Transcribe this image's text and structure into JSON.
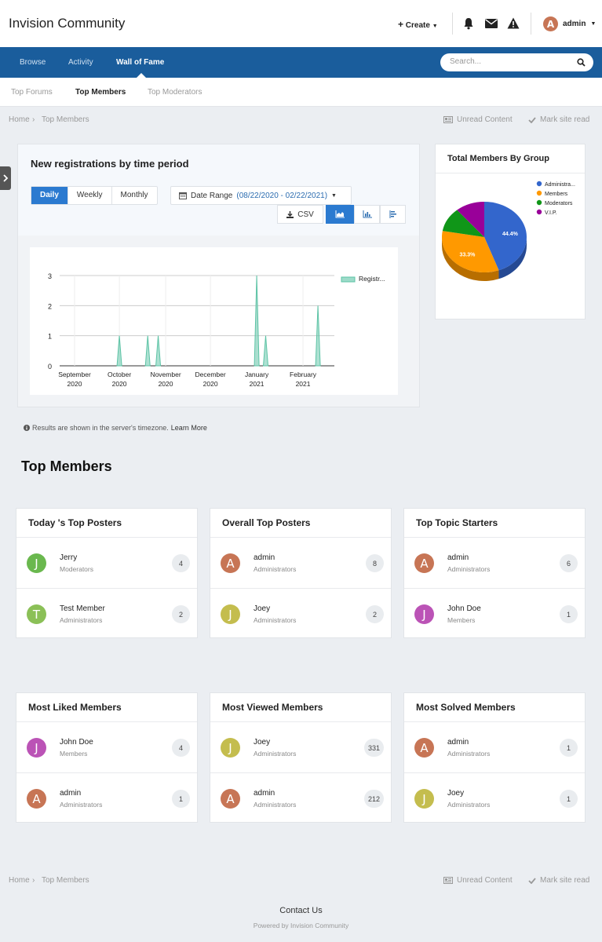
{
  "header": {
    "site_title": "Invision Community",
    "create_label": "Create",
    "user": {
      "name": "admin",
      "initial": "A",
      "color": "#c77555"
    }
  },
  "nav": {
    "items": [
      "Browse",
      "Activity",
      "Wall of Fame"
    ],
    "active": "Wall of Fame",
    "search_placeholder": "Search..."
  },
  "subnav": {
    "items": [
      "Top Forums",
      "Top Members",
      "Top Moderators"
    ],
    "active": "Top Members"
  },
  "breadcrumb": {
    "home": "Home",
    "separator": "›",
    "current": "Top Members"
  },
  "actions": {
    "unread": "Unread Content",
    "mark_read": "Mark site read"
  },
  "registrations": {
    "title": "New registrations by time period",
    "periods": [
      "Daily",
      "Weekly",
      "Monthly"
    ],
    "active_period": "Daily",
    "date_range_label": "Date Range",
    "date_range_value": "(08/22/2020 - 02/22/2021)",
    "csv_label": "CSV",
    "timezone_note": "Results are shown in the server's timezone.",
    "learn_more": "Learn More"
  },
  "chart_data": [
    {
      "type": "area",
      "title": "",
      "xlabel": "",
      "ylabel": "",
      "ylim": [
        0,
        3
      ],
      "yticks": [
        0,
        1,
        2,
        3
      ],
      "xlim": [
        "2020-08-22",
        "2021-02-22"
      ],
      "xticks": [
        {
          "label": [
            "September",
            "2020"
          ],
          "date": "2020-09-01"
        },
        {
          "label": [
            "October",
            "2020"
          ],
          "date": "2020-10-01"
        },
        {
          "label": [
            "November",
            "2020"
          ],
          "date": "2020-11-01"
        },
        {
          "label": [
            "December",
            "2020"
          ],
          "date": "2020-12-01"
        },
        {
          "label": [
            "January",
            "2021"
          ],
          "date": "2021-01-01"
        },
        {
          "label": [
            "February",
            "2021"
          ],
          "date": "2021-02-01"
        }
      ],
      "grid": true,
      "legend_position": "top-right",
      "series": [
        {
          "name": "Registr...",
          "color": "#5cc3a5",
          "points": [
            {
              "date": "2020-10-01",
              "value": 1
            },
            {
              "date": "2020-10-20",
              "value": 1
            },
            {
              "date": "2020-10-27",
              "value": 1
            },
            {
              "date": "2021-01-01",
              "value": 3
            },
            {
              "date": "2021-01-07",
              "value": 1
            },
            {
              "date": "2021-02-11",
              "value": 2
            }
          ]
        }
      ]
    },
    {
      "type": "pie",
      "title": "Total Members By Group",
      "legend_position": "top-right",
      "slices": [
        {
          "name": "Administra...",
          "value": 44.4,
          "label": "44.4%",
          "color": "#3366cc"
        },
        {
          "name": "Members",
          "value": 33.3,
          "label": "33.3%",
          "color": "#ff9900"
        },
        {
          "name": "Moderators",
          "value": 11.1,
          "label": "",
          "color": "#109618"
        },
        {
          "name": "V.I.P.",
          "value": 11.1,
          "label": "",
          "color": "#990099"
        }
      ]
    }
  ],
  "section_title": "Top Members",
  "cards": [
    {
      "title": "Today 's Top Posters",
      "members": [
        {
          "name": "Jerry",
          "group": "Moderators",
          "count": "4",
          "initial": "J",
          "color": "#6ab84e"
        },
        {
          "name": "Test Member",
          "group": "Administrators",
          "count": "2",
          "initial": "T",
          "color": "#8bc057"
        }
      ]
    },
    {
      "title": "Overall Top Posters",
      "members": [
        {
          "name": "admin",
          "group": "Administrators",
          "count": "8",
          "initial": "A",
          "color": "#c77555"
        },
        {
          "name": "Joey",
          "group": "Administrators",
          "count": "2",
          "initial": "J",
          "color": "#c4bd4e"
        }
      ]
    },
    {
      "title": "Top Topic Starters",
      "members": [
        {
          "name": "admin",
          "group": "Administrators",
          "count": "6",
          "initial": "A",
          "color": "#c77555"
        },
        {
          "name": "John Doe",
          "group": "Members",
          "count": "1",
          "initial": "J",
          "color": "#bb53b6"
        }
      ]
    },
    {
      "title": "Most Liked Members",
      "members": [
        {
          "name": "John Doe",
          "group": "Members",
          "count": "4",
          "initial": "J",
          "color": "#bb53b6"
        },
        {
          "name": "admin",
          "group": "Administrators",
          "count": "1",
          "initial": "A",
          "color": "#c77555"
        }
      ]
    },
    {
      "title": "Most Viewed Members",
      "members": [
        {
          "name": "Joey",
          "group": "Administrators",
          "count": "331",
          "initial": "J",
          "color": "#c4bd4e"
        },
        {
          "name": "admin",
          "group": "Administrators",
          "count": "212",
          "initial": "A",
          "color": "#c77555"
        }
      ]
    },
    {
      "title": "Most Solved Members",
      "members": [
        {
          "name": "admin",
          "group": "Administrators",
          "count": "1",
          "initial": "A",
          "color": "#c77555"
        },
        {
          "name": "Joey",
          "group": "Administrators",
          "count": "1",
          "initial": "J",
          "color": "#c4bd4e"
        }
      ]
    }
  ],
  "footer": {
    "contact": "Contact Us",
    "powered": "Powered by Invision Community"
  }
}
